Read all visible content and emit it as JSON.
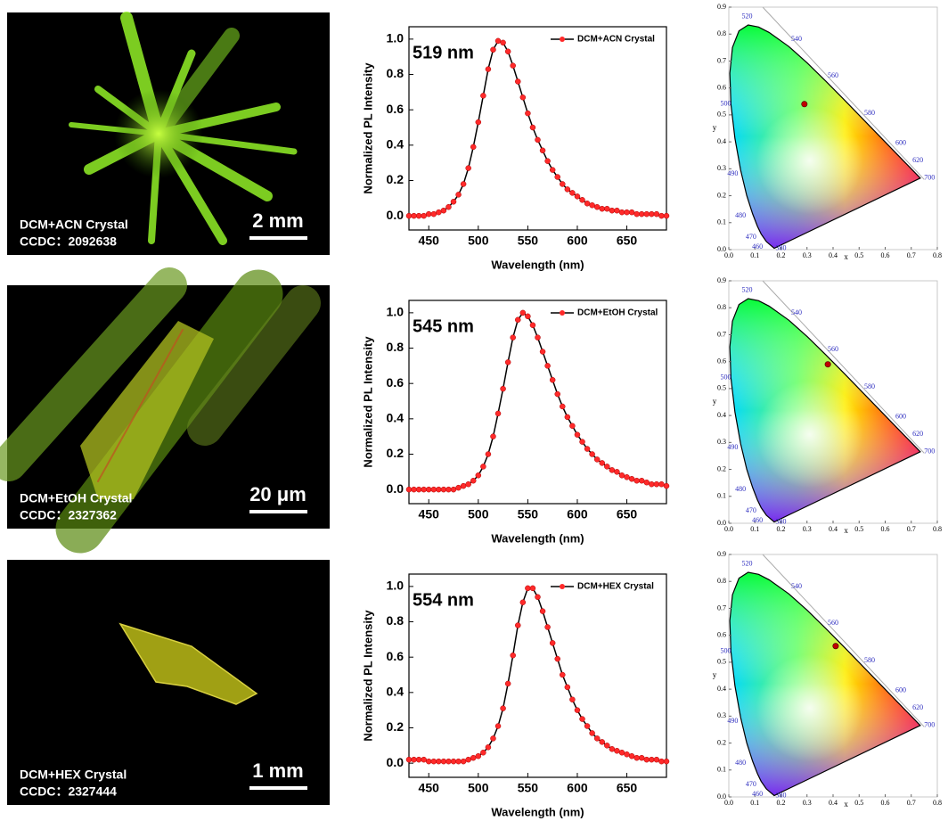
{
  "photos": [
    {
      "label": "DCM+ACN Crystal",
      "ccdc": "CCDC：2092638",
      "scale": "2 mm"
    },
    {
      "label": "DCM+EtOH Crystal",
      "ccdc": "CCDC：2327362",
      "scale": "20 μm"
    },
    {
      "label": "DCM+HEX Crystal",
      "ccdc": "CCDC：2327444",
      "scale": "1 mm"
    }
  ],
  "chart_data": [
    {
      "type": "line",
      "xlabel": "Wavelength (nm)",
      "ylabel": "Normalized PL Intensity",
      "annotation": "519 nm",
      "x": [
        430,
        435,
        440,
        445,
        450,
        455,
        460,
        465,
        470,
        475,
        480,
        485,
        490,
        495,
        500,
        505,
        510,
        515,
        520,
        525,
        530,
        535,
        540,
        545,
        550,
        555,
        560,
        565,
        570,
        575,
        580,
        585,
        590,
        595,
        600,
        605,
        610,
        615,
        620,
        625,
        630,
        635,
        640,
        645,
        650,
        655,
        660,
        665,
        670,
        675,
        680,
        685,
        690
      ],
      "series": [
        {
          "name": "DCM+ACN Crystal",
          "color": "#ff2a2a",
          "line_color": "#000000",
          "values": [
            0,
            0,
            0,
            0,
            0.01,
            0.01,
            0.02,
            0.03,
            0.05,
            0.08,
            0.12,
            0.18,
            0.27,
            0.39,
            0.53,
            0.68,
            0.83,
            0.94,
            0.99,
            0.98,
            0.93,
            0.85,
            0.76,
            0.67,
            0.58,
            0.5,
            0.43,
            0.37,
            0.31,
            0.26,
            0.22,
            0.18,
            0.15,
            0.13,
            0.11,
            0.09,
            0.07,
            0.06,
            0.05,
            0.04,
            0.04,
            0.03,
            0.03,
            0.02,
            0.02,
            0.02,
            0.01,
            0.01,
            0.01,
            0.01,
            0.01,
            0,
            0
          ]
        }
      ],
      "xlim": [
        430,
        690
      ],
      "xticks": [
        450,
        500,
        550,
        600,
        650
      ],
      "ylim": [
        -0.08,
        1.07
      ],
      "yticks": [
        {
          "value": 0,
          "label": "0.0"
        },
        0.2,
        0.4,
        0.6,
        0.8,
        {
          "value": 1,
          "label": "1.0"
        }
      ],
      "legend": "top-right"
    },
    {
      "type": "line",
      "xlabel": "Wavelength (nm)",
      "ylabel": "Normalized PL Intensity",
      "annotation": "545 nm",
      "x": [
        430,
        435,
        440,
        445,
        450,
        455,
        460,
        465,
        470,
        475,
        480,
        485,
        490,
        495,
        500,
        505,
        510,
        515,
        520,
        525,
        530,
        535,
        540,
        545,
        550,
        555,
        560,
        565,
        570,
        575,
        580,
        585,
        590,
        595,
        600,
        605,
        610,
        615,
        620,
        625,
        630,
        635,
        640,
        645,
        650,
        655,
        660,
        665,
        670,
        675,
        680,
        685,
        690
      ],
      "series": [
        {
          "name": "DCM+EtOH Crystal",
          "color": "#ff2a2a",
          "line_color": "#000000",
          "values": [
            0,
            0,
            0,
            0,
            0,
            0,
            0,
            0,
            0,
            0,
            0.01,
            0.02,
            0.03,
            0.05,
            0.08,
            0.13,
            0.2,
            0.3,
            0.43,
            0.57,
            0.72,
            0.86,
            0.96,
            1.0,
            0.98,
            0.93,
            0.86,
            0.78,
            0.7,
            0.62,
            0.54,
            0.47,
            0.41,
            0.36,
            0.31,
            0.27,
            0.23,
            0.2,
            0.17,
            0.15,
            0.13,
            0.11,
            0.1,
            0.08,
            0.07,
            0.06,
            0.05,
            0.05,
            0.04,
            0.03,
            0.03,
            0.03,
            0.02
          ]
        }
      ],
      "xlim": [
        430,
        690
      ],
      "xticks": [
        450,
        500,
        550,
        600,
        650
      ],
      "ylim": [
        -0.08,
        1.07
      ],
      "yticks": [
        {
          "value": 0,
          "label": "0.0"
        },
        0.2,
        0.4,
        0.6,
        0.8,
        {
          "value": 1,
          "label": "1.0"
        }
      ],
      "legend": "top-right"
    },
    {
      "type": "line",
      "xlabel": "Wavelength (nm)",
      "ylabel": "Normalized PL Intensity",
      "annotation": "554 nm",
      "x": [
        430,
        435,
        440,
        445,
        450,
        455,
        460,
        465,
        470,
        475,
        480,
        485,
        490,
        495,
        500,
        505,
        510,
        515,
        520,
        525,
        530,
        535,
        540,
        545,
        550,
        555,
        560,
        565,
        570,
        575,
        580,
        585,
        590,
        595,
        600,
        605,
        610,
        615,
        620,
        625,
        630,
        635,
        640,
        645,
        650,
        655,
        660,
        665,
        670,
        675,
        680,
        685,
        690
      ],
      "series": [
        {
          "name": "DCM+HEX Crystal",
          "color": "#ff2a2a",
          "line_color": "#000000",
          "values": [
            0.02,
            0.02,
            0.02,
            0.02,
            0.01,
            0.01,
            0.01,
            0.01,
            0.01,
            0.01,
            0.01,
            0.01,
            0.02,
            0.03,
            0.04,
            0.06,
            0.09,
            0.14,
            0.21,
            0.31,
            0.45,
            0.61,
            0.78,
            0.91,
            0.99,
            0.99,
            0.94,
            0.86,
            0.77,
            0.68,
            0.59,
            0.5,
            0.43,
            0.36,
            0.3,
            0.25,
            0.21,
            0.17,
            0.14,
            0.12,
            0.1,
            0.08,
            0.07,
            0.06,
            0.05,
            0.04,
            0.03,
            0.03,
            0.02,
            0.02,
            0.02,
            0.01,
            0.01
          ]
        }
      ],
      "xlim": [
        430,
        690
      ],
      "xticks": [
        450,
        500,
        550,
        600,
        650
      ],
      "ylim": [
        -0.08,
        1.07
      ],
      "yticks": [
        {
          "value": 0,
          "label": "0.0"
        },
        0.2,
        0.4,
        0.6,
        0.8,
        {
          "value": 1,
          "label": "1.0"
        }
      ],
      "legend": "top-right"
    },
    {
      "type": "scatter",
      "xlabel": "x",
      "ylabel": "y",
      "x": [
        0.29
      ],
      "y": [
        0.54
      ],
      "color": "#c00000",
      "annotations": [
        "520",
        "540",
        "560",
        "580",
        "600",
        "620",
        "700",
        "500",
        "490",
        "480",
        "470",
        "460",
        "380"
      ],
      "xlim": [
        0,
        0.8
      ],
      "xticks": [
        {
          "value": 0,
          "label": "0.0"
        },
        0.1,
        0.2,
        0.3,
        0.4,
        0.5,
        0.6,
        0.7,
        0.8
      ],
      "ylim": [
        0,
        0.9
      ],
      "yticks": [
        {
          "value": 0,
          "label": "0.0"
        },
        0.1,
        0.2,
        0.3,
        0.4,
        0.5,
        0.6,
        0.7,
        0.8,
        0.9
      ]
    },
    {
      "type": "scatter",
      "xlabel": "x",
      "ylabel": "y",
      "x": [
        0.38
      ],
      "y": [
        0.59
      ],
      "color": "#c00000",
      "annotations": [
        "520",
        "540",
        "560",
        "580",
        "600",
        "620",
        "700",
        "500",
        "490",
        "480",
        "470",
        "460",
        "380"
      ],
      "xlim": [
        0,
        0.8
      ],
      "xticks": [
        {
          "value": 0,
          "label": "0.0"
        },
        0.1,
        0.2,
        0.3,
        0.4,
        0.5,
        0.6,
        0.7,
        0.8
      ],
      "ylim": [
        0,
        0.9
      ],
      "yticks": [
        {
          "value": 0,
          "label": "0.0"
        },
        0.1,
        0.2,
        0.3,
        0.4,
        0.5,
        0.6,
        0.7,
        0.8,
        0.9
      ]
    },
    {
      "type": "scatter",
      "xlabel": "x",
      "ylabel": "y",
      "x": [
        0.41
      ],
      "y": [
        0.56
      ],
      "color": "#c00000",
      "annotations": [
        "520",
        "540",
        "560",
        "580",
        "600",
        "620",
        "700",
        "500",
        "490",
        "480",
        "470",
        "460",
        "380"
      ],
      "xlim": [
        0,
        0.8
      ],
      "xticks": [
        {
          "value": 0,
          "label": "0.0"
        },
        0.1,
        0.2,
        0.3,
        0.4,
        0.5,
        0.6,
        0.7,
        0.8
      ],
      "ylim": [
        0,
        0.9
      ],
      "yticks": [
        {
          "value": 0,
          "label": "0.0"
        },
        0.1,
        0.2,
        0.3,
        0.4,
        0.5,
        0.6,
        0.7,
        0.8,
        0.9
      ]
    }
  ]
}
